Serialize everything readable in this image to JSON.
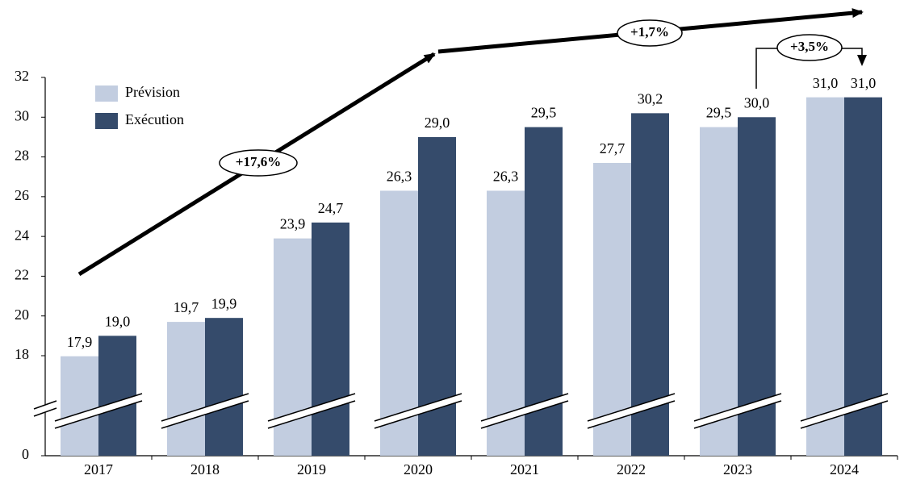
{
  "chart_data": {
    "type": "bar",
    "categories": [
      "2017",
      "2018",
      "2019",
      "2020",
      "2021",
      "2022",
      "2023",
      "2024"
    ],
    "series": [
      {
        "name": "Prévision",
        "color": "#c2cde0",
        "values": [
          17.9,
          19.7,
          23.9,
          26.3,
          26.3,
          27.7,
          29.5,
          31.0
        ],
        "value_labels": [
          "17,9",
          "19,7",
          "23,9",
          "26,3",
          "26,3",
          "27,7",
          "29,5",
          "31,0"
        ]
      },
      {
        "name": "Exécution",
        "color": "#354b6b",
        "values": [
          19.0,
          19.9,
          24.7,
          29.0,
          29.5,
          30.2,
          30.0,
          31.0
        ],
        "value_labels": [
          "19,0",
          "19,9",
          "24,7",
          "29,0",
          "29,5",
          "30,2",
          "30,0",
          "31,0"
        ]
      }
    ],
    "ylim": [
      0,
      32
    ],
    "yticks": [
      0,
      18,
      20,
      22,
      24,
      26,
      28,
      30,
      32
    ],
    "broken_axis": true,
    "legend": "upper left",
    "annotations": [
      {
        "text": "+17,6%"
      },
      {
        "text": "+1,7%"
      },
      {
        "text": "+3,5%"
      }
    ]
  }
}
